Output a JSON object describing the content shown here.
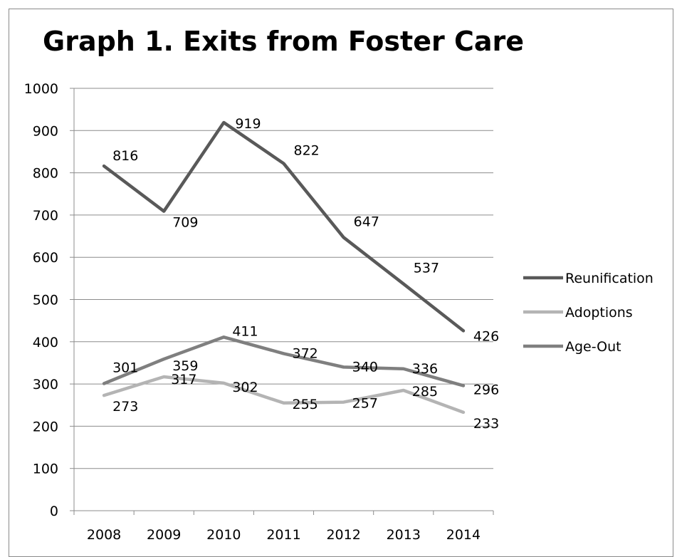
{
  "chart_data": {
    "type": "line",
    "title": "Graph 1. Exits from Foster Care",
    "xlabel": "",
    "ylabel": "",
    "categories": [
      "2008",
      "2009",
      "2010",
      "2011",
      "2012",
      "2013",
      "2014"
    ],
    "ylim": [
      0,
      1000
    ],
    "yticks": [
      "0",
      "100",
      "200",
      "300",
      "400",
      "500",
      "600",
      "700",
      "800",
      "900",
      "1000"
    ],
    "grid": true,
    "legend_position": "right",
    "series": [
      {
        "name": "Reunification",
        "color": "#595959",
        "values": [
          816,
          709,
          919,
          822,
          647,
          537,
          426
        ]
      },
      {
        "name": "Adoptions",
        "color": "#b4b4b4",
        "values": [
          273,
          317,
          302,
          255,
          257,
          285,
          233
        ]
      },
      {
        "name": "Age-Out",
        "color": "#7f7f7f",
        "values": [
          301,
          359,
          411,
          372,
          340,
          336,
          296
        ]
      }
    ]
  }
}
